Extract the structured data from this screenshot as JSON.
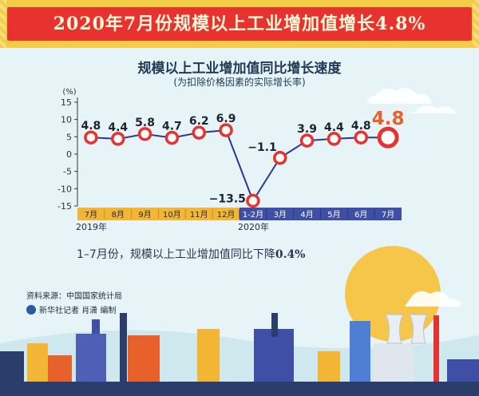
{
  "banner": {
    "title": "2020年7月份规模以上工业增加值增长4.8%"
  },
  "chart_data": {
    "type": "line",
    "title": "规模以上工业增加值同比增长速度",
    "subtitle": "(为扣除价格因素的实际增长率)",
    "y_unit": "(%)",
    "ylim": [
      -15,
      15
    ],
    "y_ticks": [
      15,
      10,
      5,
      0,
      -5,
      -10,
      -15
    ],
    "categories": [
      "7月",
      "8月",
      "9月",
      "10月",
      "11月",
      "12月",
      "1-2月",
      "3月",
      "4月",
      "5月",
      "6月",
      "7月"
    ],
    "year_labels": [
      "2019年",
      "2020年"
    ],
    "values": [
      4.8,
      4.4,
      5.8,
      4.7,
      6.2,
      6.9,
      -13.5,
      -1.1,
      3.9,
      4.4,
      4.8,
      4.8
    ],
    "value_labels": [
      "4.8",
      "4.4",
      "5.8",
      "4.7",
      "6.2",
      "6.9",
      "−13.5",
      "−1.1",
      "3.9",
      "4.4",
      "4.8",
      "4.8"
    ],
    "highlight_index": 11,
    "colors": {
      "line": "#2b3a8c",
      "marker": "#e8322f",
      "highlight": "#e8602a",
      "band2019": "#f2b534",
      "band2020": "#3f4fa5"
    }
  },
  "note": {
    "prefix": "1–7月份，规模以上工业增加值同比下降",
    "value": "0.4%"
  },
  "footer": {
    "source": "资料来源：中国国家统计局",
    "credit": "新华社记者 肖潇 编制"
  }
}
